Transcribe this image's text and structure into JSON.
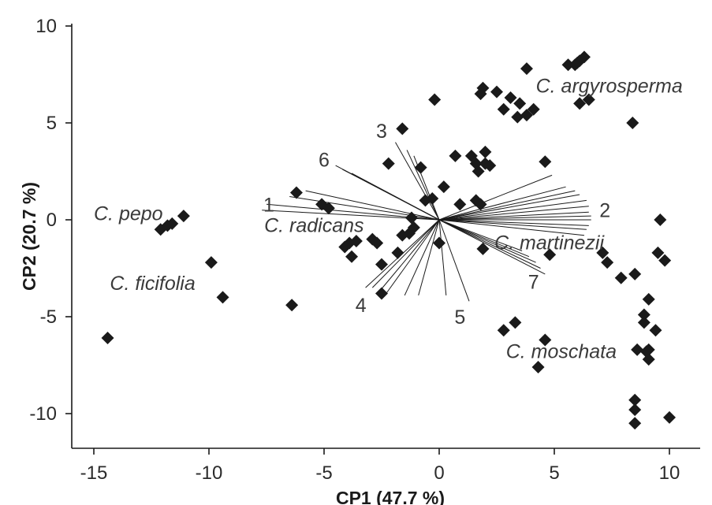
{
  "chart_data": {
    "type": "scatter",
    "subtype": "pca-biplot",
    "xlabel": "CP1 (47.7 %)",
    "ylabel": "CP2 (20.7 %)",
    "xlim": [
      -16,
      11.5
    ],
    "ylim": [
      -11.7,
      11
    ],
    "xticks": [
      -15,
      -10,
      -5,
      0,
      5,
      10
    ],
    "yticks": [
      10,
      5,
      0,
      -5,
      -10
    ],
    "xtick_labels": [
      "-15",
      "-10",
      "-5",
      "0",
      "5",
      "10"
    ],
    "ytick_labels": [
      "10",
      "5",
      "0",
      "-5",
      "-10"
    ],
    "grid": false,
    "marker": "diamond",
    "marker_color": "#1a1a1a",
    "points": [
      {
        "x": -14.4,
        "y": -6.1
      },
      {
        "x": -12.1,
        "y": -0.5
      },
      {
        "x": -11.8,
        "y": -0.3
      },
      {
        "x": -11.6,
        "y": -0.2
      },
      {
        "x": -11.1,
        "y": 0.2
      },
      {
        "x": -9.9,
        "y": -2.2
      },
      {
        "x": -9.4,
        "y": -4.0
      },
      {
        "x": -6.4,
        "y": -4.4
      },
      {
        "x": -6.2,
        "y": 1.4
      },
      {
        "x": -5.1,
        "y": 0.8
      },
      {
        "x": -4.8,
        "y": 0.6
      },
      {
        "x": -4.1,
        "y": -1.4
      },
      {
        "x": -3.9,
        "y": -1.2
      },
      {
        "x": -3.8,
        "y": -1.9
      },
      {
        "x": -3.6,
        "y": -1.1
      },
      {
        "x": -2.9,
        "y": -1.0
      },
      {
        "x": -2.7,
        "y": -1.2
      },
      {
        "x": -2.5,
        "y": -2.3
      },
      {
        "x": -2.5,
        "y": -3.8
      },
      {
        "x": -2.2,
        "y": 2.9
      },
      {
        "x": -1.8,
        "y": -1.7
      },
      {
        "x": -1.6,
        "y": -0.8
      },
      {
        "x": -1.6,
        "y": 4.7
      },
      {
        "x": -1.3,
        "y": -0.7
      },
      {
        "x": -1.2,
        "y": 0.1
      },
      {
        "x": -1.1,
        "y": -0.4
      },
      {
        "x": -0.8,
        "y": 2.7
      },
      {
        "x": -0.6,
        "y": 1.0
      },
      {
        "x": -0.3,
        "y": 1.1
      },
      {
        "x": -0.2,
        "y": 6.2
      },
      {
        "x": 0.0,
        "y": -1.2
      },
      {
        "x": 0.2,
        "y": 1.7
      },
      {
        "x": 0.7,
        "y": 3.3
      },
      {
        "x": 0.9,
        "y": 0.8
      },
      {
        "x": 1.4,
        "y": 3.3
      },
      {
        "x": 1.6,
        "y": 2.9
      },
      {
        "x": 1.6,
        "y": 1.0
      },
      {
        "x": 1.7,
        "y": 2.5
      },
      {
        "x": 1.8,
        "y": 0.8
      },
      {
        "x": 1.8,
        "y": 6.5
      },
      {
        "x": 1.9,
        "y": 6.8
      },
      {
        "x": 1.9,
        "y": -1.5
      },
      {
        "x": 2.0,
        "y": 2.9
      },
      {
        "x": 2.0,
        "y": 3.5
      },
      {
        "x": 2.2,
        "y": 2.8
      },
      {
        "x": 2.5,
        "y": 6.6
      },
      {
        "x": 2.8,
        "y": 5.7
      },
      {
        "x": 2.8,
        "y": -5.7
      },
      {
        "x": 3.1,
        "y": 6.3
      },
      {
        "x": 3.3,
        "y": -5.3
      },
      {
        "x": 3.4,
        "y": 5.3
      },
      {
        "x": 3.5,
        "y": 6.0
      },
      {
        "x": 3.8,
        "y": 5.4
      },
      {
        "x": 3.8,
        "y": 7.8
      },
      {
        "x": 4.1,
        "y": 5.7
      },
      {
        "x": 4.3,
        "y": -7.6
      },
      {
        "x": 4.6,
        "y": 3.0
      },
      {
        "x": 4.6,
        "y": -6.2
      },
      {
        "x": 4.8,
        "y": -1.8
      },
      {
        "x": 5.6,
        "y": 8.0
      },
      {
        "x": 5.9,
        "y": 8.0
      },
      {
        "x": 6.0,
        "y": 8.1
      },
      {
        "x": 6.1,
        "y": 6.0
      },
      {
        "x": 6.1,
        "y": 8.2
      },
      {
        "x": 6.3,
        "y": 8.4
      },
      {
        "x": 6.5,
        "y": 6.2
      },
      {
        "x": 7.1,
        "y": -1.7
      },
      {
        "x": 7.3,
        "y": -2.2
      },
      {
        "x": 7.9,
        "y": -3.0
      },
      {
        "x": 8.4,
        "y": 5.0
      },
      {
        "x": 8.5,
        "y": -2.8
      },
      {
        "x": 8.5,
        "y": -9.3
      },
      {
        "x": 8.5,
        "y": -9.8
      },
      {
        "x": 8.5,
        "y": -10.5
      },
      {
        "x": 8.6,
        "y": -6.7
      },
      {
        "x": 8.9,
        "y": -4.9
      },
      {
        "x": 8.9,
        "y": -5.3
      },
      {
        "x": 9.0,
        "y": -6.8
      },
      {
        "x": 9.1,
        "y": -4.1
      },
      {
        "x": 9.1,
        "y": -7.2
      },
      {
        "x": 9.1,
        "y": -6.7
      },
      {
        "x": 9.4,
        "y": -5.7
      },
      {
        "x": 9.5,
        "y": -1.7
      },
      {
        "x": 9.6,
        "y": 0.0
      },
      {
        "x": 9.8,
        "y": -2.1
      },
      {
        "x": 10.0,
        "y": -10.2
      }
    ],
    "vectors": [
      {
        "x": -7.7,
        "y": 0.5
      },
      {
        "x": -7.5,
        "y": 0.8
      },
      {
        "x": -6.5,
        "y": 1.2
      },
      {
        "x": -5.8,
        "y": 1.5
      },
      {
        "x": -4.5,
        "y": 2.8
      },
      {
        "x": -4.2,
        "y": 2.6
      },
      {
        "x": -3.8,
        "y": 2.4
      },
      {
        "x": -3.5,
        "y": 2.2
      },
      {
        "x": -1.9,
        "y": 4.0
      },
      {
        "x": -1.4,
        "y": 3.6
      },
      {
        "x": -1.1,
        "y": 3.3
      },
      {
        "x": -3.2,
        "y": -3.5
      },
      {
        "x": -2.9,
        "y": -3.5
      },
      {
        "x": -2.6,
        "y": -3.7
      },
      {
        "x": -2.3,
        "y": -3.8
      },
      {
        "x": -1.5,
        "y": -3.9
      },
      {
        "x": -0.9,
        "y": -3.9
      },
      {
        "x": 0.3,
        "y": -3.9
      },
      {
        "x": 1.3,
        "y": -4.2
      },
      {
        "x": 4.9,
        "y": 2.3
      },
      {
        "x": 5.5,
        "y": 1.7
      },
      {
        "x": 5.9,
        "y": 1.5
      },
      {
        "x": 6.1,
        "y": 1.3
      },
      {
        "x": 6.4,
        "y": 1.0
      },
      {
        "x": 6.5,
        "y": 0.7
      },
      {
        "x": 6.5,
        "y": 0.4
      },
      {
        "x": 6.6,
        "y": 0.2
      },
      {
        "x": 6.6,
        "y": 0.0
      },
      {
        "x": 6.5,
        "y": -0.3
      },
      {
        "x": 6.4,
        "y": -0.5
      },
      {
        "x": 6.3,
        "y": -0.8
      },
      {
        "x": 3.6,
        "y": -1.6
      },
      {
        "x": 3.9,
        "y": -1.9
      },
      {
        "x": 4.2,
        "y": -2.2
      },
      {
        "x": 4.4,
        "y": -2.5
      },
      {
        "x": 4.6,
        "y": -2.8
      }
    ],
    "vector_labels": [
      {
        "text": "1",
        "x": -7.4,
        "y": 0.8
      },
      {
        "text": "2",
        "x": 7.2,
        "y": 0.5
      },
      {
        "text": "3",
        "x": -2.5,
        "y": 4.6
      },
      {
        "text": "4",
        "x": -3.4,
        "y": -4.4
      },
      {
        "text": "5",
        "x": 0.9,
        "y": -5.0
      },
      {
        "text": "6",
        "x": -5.0,
        "y": 3.1
      },
      {
        "text": "7",
        "x": 4.1,
        "y": -3.2
      }
    ],
    "group_labels": [
      {
        "text": "C. pepo",
        "x": -15.0,
        "y": 0.3
      },
      {
        "text": "C. ficifolia",
        "x": -14.3,
        "y": -3.3
      },
      {
        "text": "C. radicans",
        "x": -7.6,
        "y": -0.3
      },
      {
        "text": "C. argyrosperma",
        "x": 4.2,
        "y": 6.9
      },
      {
        "text": "C. martinezii",
        "x": 2.4,
        "y": -1.2
      },
      {
        "text": "C. moschata",
        "x": 2.9,
        "y": -6.8
      }
    ]
  }
}
